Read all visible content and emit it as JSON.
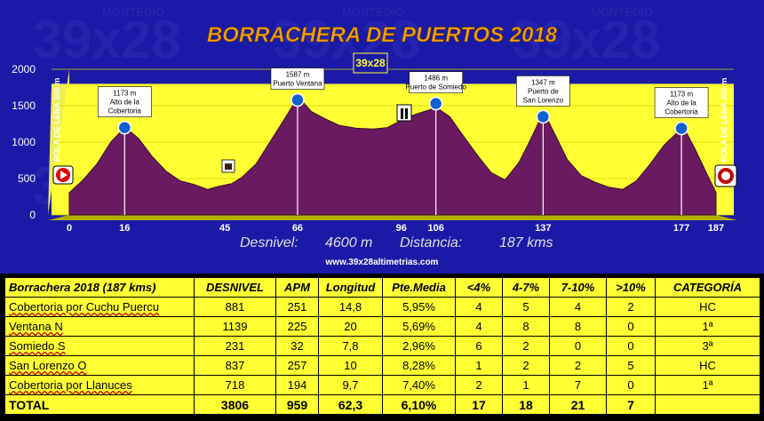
{
  "title": "BORRACHERA DE PUERTOS 2018",
  "watermark": "MONTEDIO",
  "logo_text": "39x28",
  "summary": {
    "desnivel_label": "Desnivel:",
    "desnivel_value": "4600 m",
    "distancia_label": "Distancia:",
    "distancia_value": "187 kms"
  },
  "website": "www.39x28altimetrias.com",
  "start_label": "POLA DE LENA 305 m",
  "end_label": "POLA DE LENA 305 m",
  "chart_data": {
    "type": "area",
    "ylim": [
      0,
      2000
    ],
    "xlim": [
      0,
      187
    ],
    "yticks": [
      0,
      500,
      1000,
      1500,
      2000
    ],
    "xticks": [
      0,
      16,
      45,
      66,
      96,
      106,
      137,
      177,
      187
    ],
    "profile": [
      [
        0,
        305
      ],
      [
        4,
        480
      ],
      [
        8,
        700
      ],
      [
        12,
        1000
      ],
      [
        15,
        1150
      ],
      [
        17,
        1170
      ],
      [
        20,
        1050
      ],
      [
        24,
        800
      ],
      [
        28,
        600
      ],
      [
        32,
        470
      ],
      [
        36,
        420
      ],
      [
        40,
        350
      ],
      [
        43,
        390
      ],
      [
        47,
        430
      ],
      [
        50,
        520
      ],
      [
        54,
        700
      ],
      [
        58,
        1000
      ],
      [
        62,
        1300
      ],
      [
        65,
        1530
      ],
      [
        67,
        1580
      ],
      [
        70,
        1420
      ],
      [
        74,
        1320
      ],
      [
        78,
        1230
      ],
      [
        83,
        1190
      ],
      [
        88,
        1180
      ],
      [
        92,
        1200
      ],
      [
        96,
        1300
      ],
      [
        100,
        1380
      ],
      [
        104,
        1440
      ],
      [
        106,
        1480
      ],
      [
        110,
        1350
      ],
      [
        114,
        1080
      ],
      [
        118,
        820
      ],
      [
        122,
        580
      ],
      [
        126,
        480
      ],
      [
        130,
        720
      ],
      [
        133,
        1000
      ],
      [
        136,
        1300
      ],
      [
        138,
        1340
      ],
      [
        141,
        1050
      ],
      [
        144,
        760
      ],
      [
        148,
        540
      ],
      [
        152,
        450
      ],
      [
        156,
        380
      ],
      [
        160,
        350
      ],
      [
        164,
        470
      ],
      [
        168,
        700
      ],
      [
        172,
        960
      ],
      [
        176,
        1140
      ],
      [
        178,
        1170
      ],
      [
        181,
        900
      ],
      [
        184,
        600
      ],
      [
        187,
        305
      ]
    ],
    "annotations": [
      {
        "x": 16,
        "label_lines": [
          "1173 m",
          "Alto de la",
          "Cobertoria"
        ]
      },
      {
        "x": 66,
        "label_lines": [
          "1587 m",
          "Puerto Ventana"
        ]
      },
      {
        "x": 106,
        "label_lines": [
          "1486 m",
          "Puerto de Somiedo"
        ]
      },
      {
        "x": 137,
        "label_lines": [
          "1347 m",
          "Puerto de",
          "San Lorenzo"
        ]
      },
      {
        "x": 177,
        "label_lines": [
          "1173 m",
          "Alto de la",
          "Cobertoria"
        ]
      }
    ],
    "colors": {
      "background": "#1a1aa6",
      "band": "#ffff33",
      "profile": "#6a1a60",
      "grid": "#d0d000"
    }
  },
  "table": {
    "headers": [
      "Borrachera 2018 (187 kms)",
      "DESNIVEL",
      "APM",
      "Longitud",
      "Pte.Media",
      "<4%",
      "4-7%",
      "7-10%",
      ">10%",
      "CATEGORÍA"
    ],
    "rows": [
      [
        "Cobertoria por Cuchu Puercu",
        "881",
        "251",
        "14,8",
        "5,95%",
        "4",
        "5",
        "4",
        "2",
        "HC"
      ],
      [
        "Ventana N",
        "1139",
        "225",
        "20",
        "5,69%",
        "4",
        "8",
        "8",
        "0",
        "1ª"
      ],
      [
        "Somiedo S",
        "231",
        "32",
        "7,8",
        "2,96%",
        "6",
        "2",
        "0",
        "0",
        "3ª"
      ],
      [
        "San Lorenzo O",
        "837",
        "257",
        "10",
        "8,28%",
        "1",
        "2",
        "2",
        "5",
        "HC"
      ],
      [
        "Cobertoria por Llanuces",
        "718",
        "194",
        "9,7",
        "7,40%",
        "2",
        "1",
        "7",
        "0",
        "1ª"
      ]
    ],
    "total": [
      "TOTAL",
      "3806",
      "959",
      "62,3",
      "6,10%",
      "17",
      "18",
      "21",
      "7",
      ""
    ]
  }
}
